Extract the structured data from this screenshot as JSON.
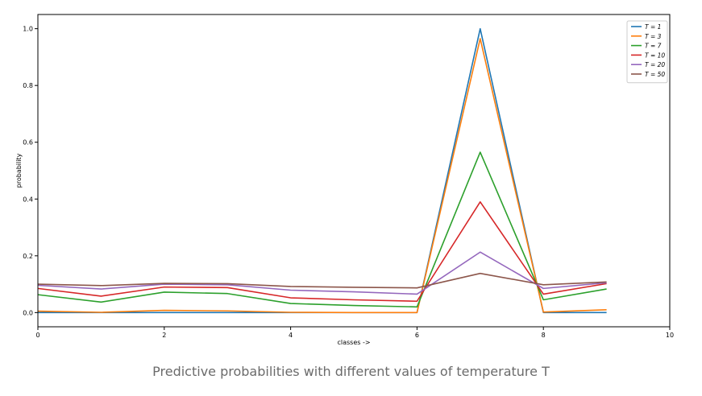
{
  "caption": "Predictive probabilities with different values of temperature T",
  "chart_data": {
    "type": "line",
    "title": "",
    "xlabel": "classes ->",
    "ylabel": "probability",
    "xlim": [
      0,
      10
    ],
    "ylim": [
      -0.05,
      1.05
    ],
    "xticks": [
      0,
      2,
      4,
      6,
      8,
      10
    ],
    "xtick_labels": [
      "0",
      "2",
      "4",
      "6",
      "8",
      "10"
    ],
    "yticks": [
      0.0,
      0.2,
      0.4,
      0.6,
      0.8,
      1.0
    ],
    "ytick_labels": [
      "0.0",
      "0.2",
      "0.4",
      "0.6",
      "0.8",
      "1.0"
    ],
    "grid": false,
    "legend_position": "top-right",
    "x": [
      0,
      1,
      2,
      3,
      4,
      5,
      6,
      7,
      8,
      9
    ],
    "series": [
      {
        "name": "T = 1",
        "color": "#1f77b4",
        "values": [
          0.0,
          0.0,
          0.0,
          0.0,
          0.0,
          0.0,
          0.0,
          1.0,
          0.0,
          0.0
        ]
      },
      {
        "name": "T = 3",
        "color": "#ff7f0e",
        "values": [
          0.005,
          0.001,
          0.008,
          0.006,
          0.001,
          0.0,
          0.0,
          0.965,
          0.002,
          0.01
        ]
      },
      {
        "name": "T = 7",
        "color": "#2ca02c",
        "values": [
          0.063,
          0.037,
          0.072,
          0.067,
          0.032,
          0.025,
          0.02,
          0.565,
          0.045,
          0.083
        ]
      },
      {
        "name": "T = 10",
        "color": "#d62728",
        "values": [
          0.085,
          0.058,
          0.09,
          0.088,
          0.052,
          0.045,
          0.04,
          0.39,
          0.065,
          0.102
        ]
      },
      {
        "name": "T = 20",
        "color": "#9467bd",
        "values": [
          0.096,
          0.083,
          0.1,
          0.098,
          0.079,
          0.073,
          0.065,
          0.213,
          0.085,
          0.105
        ]
      },
      {
        "name": "T = 50",
        "color": "#8c564b",
        "values": [
          0.1,
          0.095,
          0.103,
          0.102,
          0.092,
          0.089,
          0.087,
          0.138,
          0.098,
          0.108
        ]
      }
    ]
  }
}
